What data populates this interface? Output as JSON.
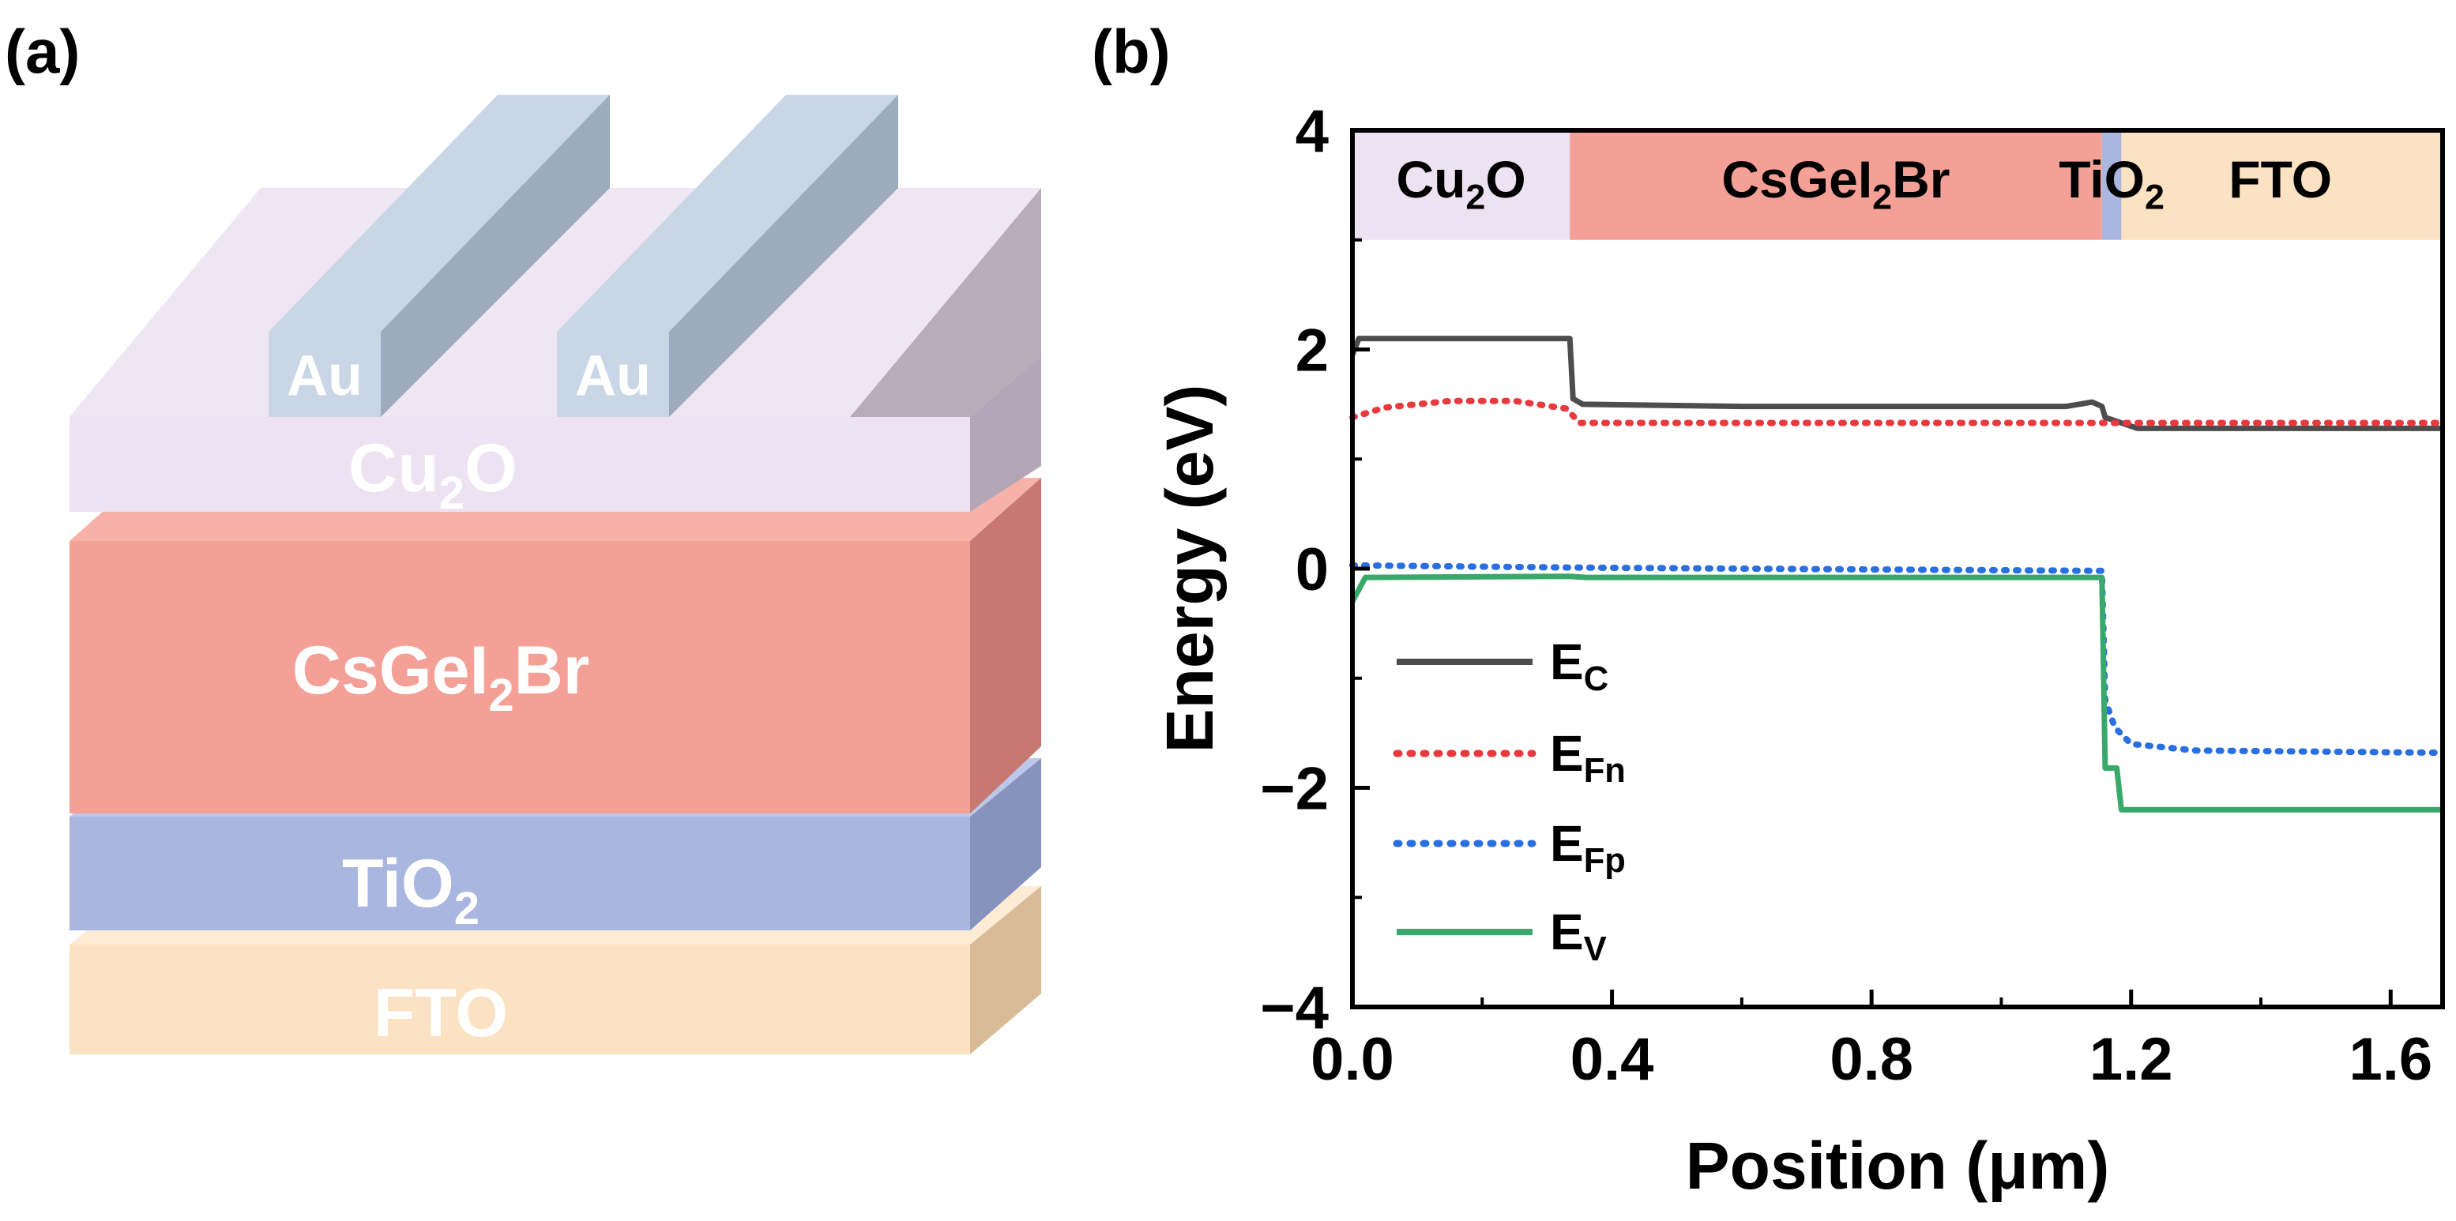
{
  "panels": {
    "a": {
      "label": "(a)"
    },
    "b": {
      "label": "(b)"
    }
  },
  "device_stack": {
    "electrodes": [
      {
        "label": "Au"
      },
      {
        "label": "Au"
      }
    ],
    "layers": [
      {
        "name": "Cu",
        "sub": "2",
        "rest": "O"
      },
      {
        "name": "CsGeI",
        "sub": "2",
        "rest": "Br"
      },
      {
        "name": "TiO",
        "sub": "2",
        "rest": ""
      },
      {
        "name": "FTO",
        "sub": "",
        "rest": ""
      }
    ],
    "colors": {
      "au": "#c9d6e6",
      "cu2o": "#ece2f1",
      "csgei2br": "#f4a096",
      "tio2": "#a8b6e0",
      "fto": "#fbe2c3"
    }
  },
  "chart_data": {
    "type": "line",
    "xlabel": "Position (μm)",
    "ylabel": "Energy (eV)",
    "xlim": [
      0.0,
      1.68
    ],
    "ylim": [
      -4,
      4
    ],
    "xticks": [
      "0.0",
      "0.4",
      "0.8",
      "1.2",
      "1.6"
    ],
    "xtick_values": [
      0.0,
      0.4,
      0.8,
      1.2,
      1.6
    ],
    "yticks": [
      "−4",
      "−2",
      "0",
      "2",
      "4"
    ],
    "ytick_values": [
      -4,
      -2,
      0,
      2,
      4
    ],
    "regions": [
      {
        "name": "Cu",
        "sub": "2",
        "rest": "O",
        "x0": 0.0,
        "x1": 0.335,
        "color": "#ece2f1"
      },
      {
        "name": "CsGeI",
        "sub": "2",
        "rest": "Br",
        "x0": 0.335,
        "x1": 1.155,
        "color": "#f4a096"
      },
      {
        "name": "TiO",
        "sub": "2",
        "rest": "",
        "x0": 1.155,
        "x1": 1.185,
        "color": "#a8b6e0"
      },
      {
        "name": "FTO",
        "sub": "",
        "rest": "",
        "x0": 1.185,
        "x1": 1.68,
        "color": "#fbe2c3"
      }
    ],
    "region_band_y": [
      3.0,
      4.0
    ],
    "series": [
      {
        "name": "E",
        "sub": "C",
        "style": "solid",
        "color": "#4d4d4d",
        "points": [
          [
            0.0,
            1.95
          ],
          [
            0.01,
            2.1
          ],
          [
            0.335,
            2.1
          ],
          [
            0.34,
            1.55
          ],
          [
            0.355,
            1.5
          ],
          [
            0.6,
            1.48
          ],
          [
            1.1,
            1.48
          ],
          [
            1.14,
            1.52
          ],
          [
            1.155,
            1.48
          ],
          [
            1.16,
            1.38
          ],
          [
            1.185,
            1.33
          ],
          [
            1.21,
            1.28
          ],
          [
            1.68,
            1.28
          ]
        ]
      },
      {
        "name": "E",
        "sub": "Fn",
        "style": "dotted",
        "color": "#e8393f",
        "points": [
          [
            0.0,
            1.38
          ],
          [
            0.05,
            1.47
          ],
          [
            0.15,
            1.53
          ],
          [
            0.25,
            1.53
          ],
          [
            0.33,
            1.46
          ],
          [
            0.35,
            1.33
          ],
          [
            0.6,
            1.33
          ],
          [
            1.155,
            1.33
          ],
          [
            1.2,
            1.33
          ],
          [
            1.68,
            1.33
          ]
        ]
      },
      {
        "name": "E",
        "sub": "Fp",
        "style": "dotted",
        "color": "#2a6fe0",
        "points": [
          [
            0.0,
            0.03
          ],
          [
            0.335,
            0.01
          ],
          [
            0.6,
            0.0
          ],
          [
            1.155,
            -0.02
          ],
          [
            1.16,
            -1.2
          ],
          [
            1.175,
            -1.45
          ],
          [
            1.2,
            -1.6
          ],
          [
            1.3,
            -1.66
          ],
          [
            1.68,
            -1.68
          ]
        ]
      },
      {
        "name": "E",
        "sub": "V",
        "style": "solid",
        "color": "#39a96b",
        "points": [
          [
            0.0,
            -0.3
          ],
          [
            0.02,
            -0.08
          ],
          [
            0.335,
            -0.07
          ],
          [
            0.36,
            -0.08
          ],
          [
            0.7,
            -0.08
          ],
          [
            1.155,
            -0.08
          ],
          [
            1.16,
            -1.82
          ],
          [
            1.178,
            -1.82
          ],
          [
            1.185,
            -2.2
          ],
          [
            1.68,
            -2.2
          ]
        ]
      }
    ]
  }
}
